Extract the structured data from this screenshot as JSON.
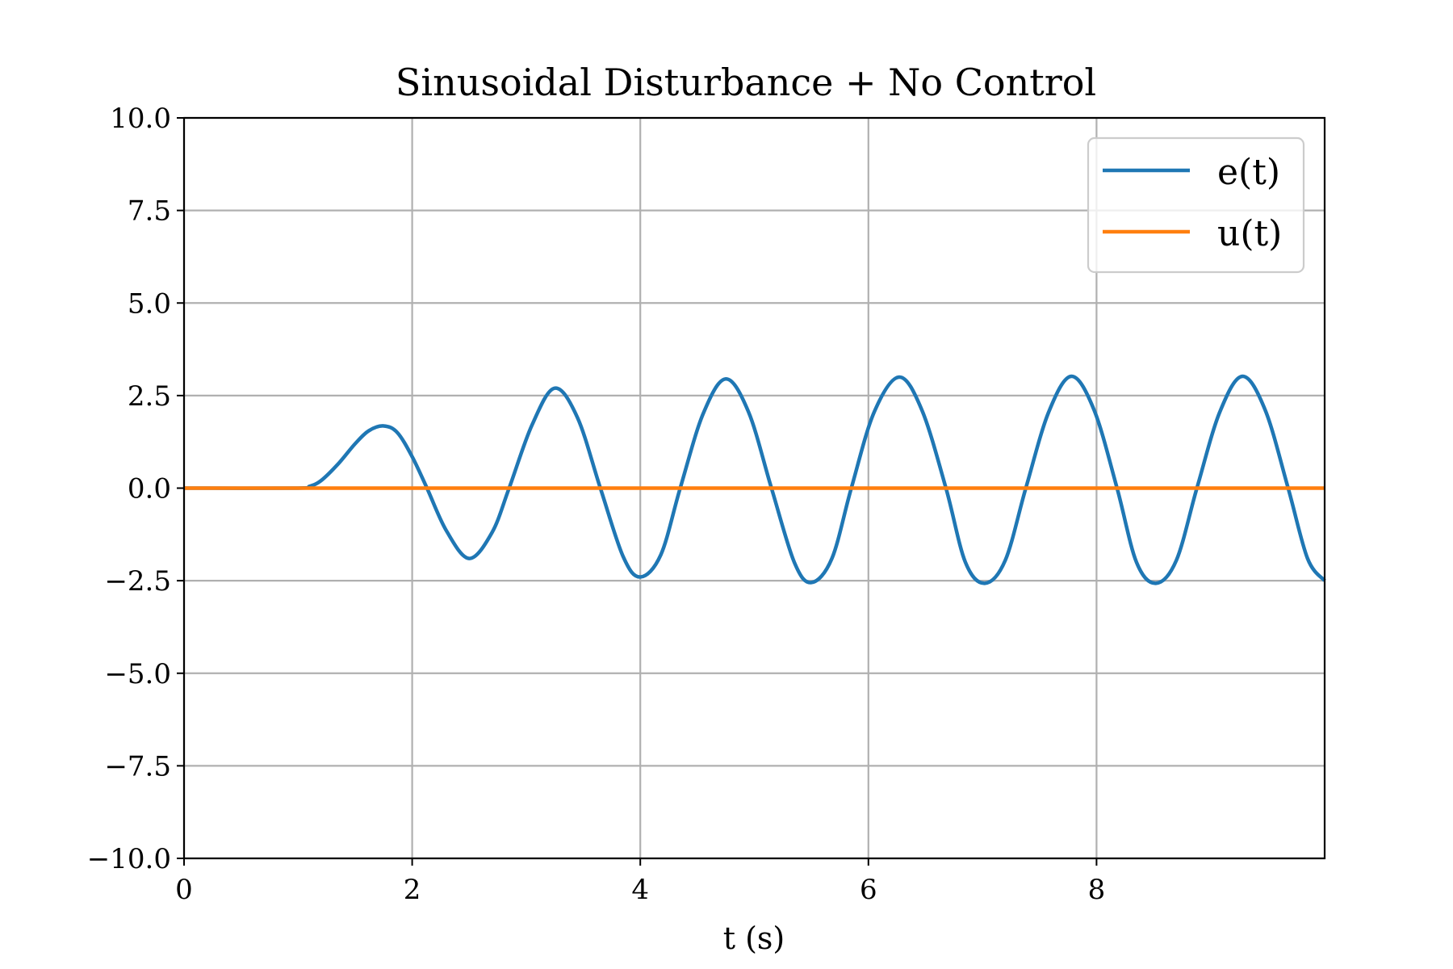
{
  "chart_data": {
    "type": "line",
    "title": "Sinusoidal Disturbance + No Control",
    "xlabel": "t (s)",
    "ylabel": "",
    "xlim": [
      0,
      10
    ],
    "ylim": [
      -10,
      10
    ],
    "grid": true,
    "legend_position": "top-right",
    "x_ticks": [
      0,
      2,
      4,
      6,
      8
    ],
    "x_tick_labels": [
      "0",
      "2",
      "4",
      "6",
      "8"
    ],
    "y_ticks": [
      10,
      7.5,
      5,
      2.5,
      0,
      -2.5,
      -5,
      -7.5,
      -10
    ],
    "y_tick_labels": [
      "10.0",
      "7.5",
      "5.0",
      "2.5",
      "0.0",
      "−2.5",
      "−5.0",
      "−7.5",
      "−10.0"
    ],
    "series": [
      {
        "name": "e(t)",
        "color": "#1f77b4",
        "points": [
          [
            0,
            0
          ],
          [
            1.0,
            0.0
          ],
          [
            1.1,
            0.05
          ],
          [
            1.2,
            0.2
          ],
          [
            1.35,
            0.65
          ],
          [
            1.5,
            1.2
          ],
          [
            1.62,
            1.55
          ],
          [
            1.75,
            1.68
          ],
          [
            1.87,
            1.5
          ],
          [
            2.0,
            0.85
          ],
          [
            2.13,
            0.0
          ],
          [
            2.3,
            -1.15
          ],
          [
            2.5,
            -1.9
          ],
          [
            2.7,
            -1.2
          ],
          [
            2.85,
            0.0
          ],
          [
            3.05,
            1.7
          ],
          [
            3.25,
            2.7
          ],
          [
            3.45,
            1.9
          ],
          [
            3.65,
            0.0
          ],
          [
            3.85,
            -1.85
          ],
          [
            4.0,
            -2.4
          ],
          [
            4.18,
            -1.8
          ],
          [
            4.35,
            0.0
          ],
          [
            4.55,
            2.0
          ],
          [
            4.75,
            2.95
          ],
          [
            4.95,
            2.05
          ],
          [
            5.15,
            0.0
          ],
          [
            5.35,
            -2.0
          ],
          [
            5.5,
            -2.55
          ],
          [
            5.68,
            -1.9
          ],
          [
            5.85,
            0.0
          ],
          [
            6.05,
            2.05
          ],
          [
            6.27,
            3.0
          ],
          [
            6.47,
            2.1
          ],
          [
            6.68,
            0.0
          ],
          [
            6.85,
            -2.0
          ],
          [
            7.02,
            -2.57
          ],
          [
            7.2,
            -1.95
          ],
          [
            7.38,
            0.0
          ],
          [
            7.58,
            2.05
          ],
          [
            7.78,
            3.02
          ],
          [
            7.98,
            2.1
          ],
          [
            8.18,
            0.0
          ],
          [
            8.35,
            -2.0
          ],
          [
            8.52,
            -2.57
          ],
          [
            8.7,
            -1.95
          ],
          [
            8.88,
            0.0
          ],
          [
            9.08,
            2.05
          ],
          [
            9.28,
            3.02
          ],
          [
            9.48,
            2.1
          ],
          [
            9.68,
            0.0
          ],
          [
            9.85,
            -1.9
          ],
          [
            10.0,
            -2.5
          ]
        ]
      },
      {
        "name": "u(t)",
        "color": "#ff7f0e",
        "points": [
          [
            0,
            0
          ],
          [
            10.0,
            0
          ]
        ]
      }
    ]
  }
}
